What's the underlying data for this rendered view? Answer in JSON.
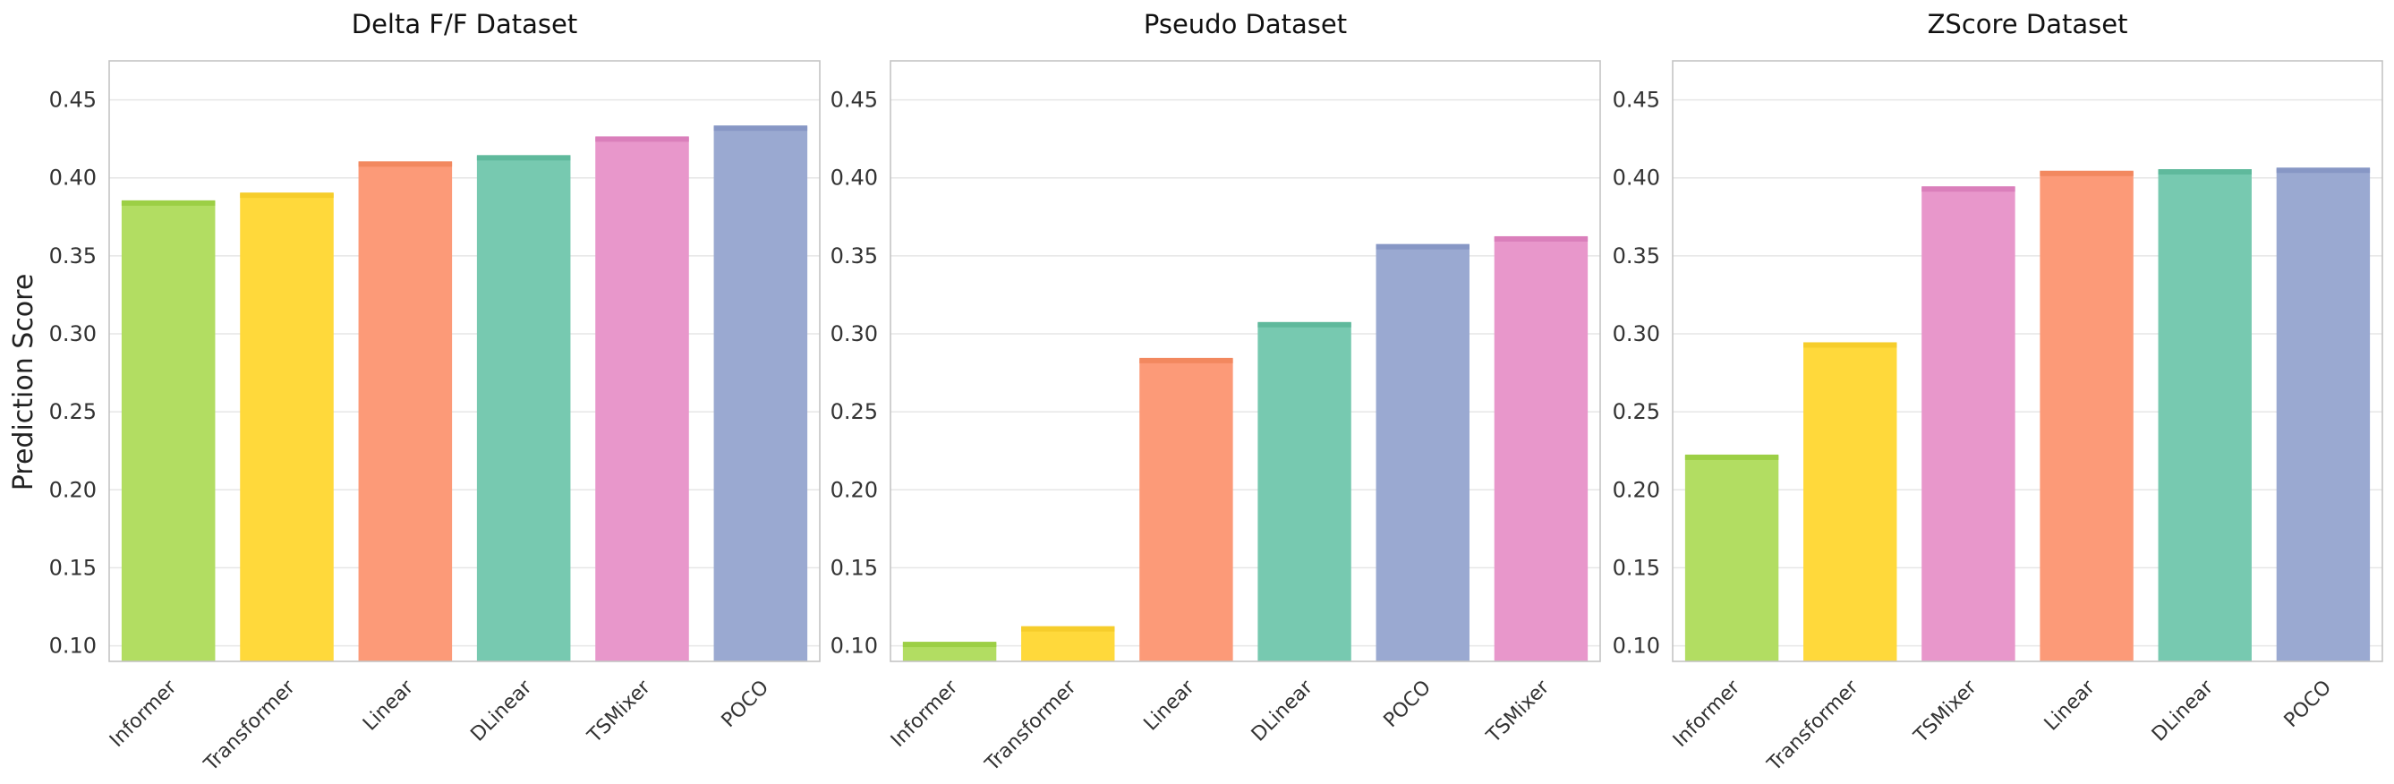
{
  "y_axis_label": "Prediction Score",
  "colors": {
    "Informer": "#b2dd62",
    "Transformer": "#ffd93b",
    "Linear": "#fc9a78",
    "DLinear": "#77c9b0",
    "TSMixer": "#e897cb",
    "POCO": "#9aa9d1"
  },
  "cap_colors": {
    "Informer": "#9ccf45",
    "Transformer": "#f6cd2b",
    "Linear": "#f2885f",
    "DLinear": "#5fb99c",
    "TSMixer": "#da7fbb",
    "POCO": "#8797c5"
  },
  "chart_data": [
    {
      "type": "bar",
      "title": "Delta F/F Dataset",
      "categories": [
        "Informer",
        "Transformer",
        "Linear",
        "DLinear",
        "TSMixer",
        "POCO"
      ],
      "values": [
        0.385,
        0.39,
        0.41,
        0.414,
        0.426,
        0.433
      ],
      "ylim": [
        0.09,
        0.475
      ],
      "yticks": [
        "0.10",
        "0.15",
        "0.20",
        "0.25",
        "0.30",
        "0.35",
        "0.40",
        "0.45"
      ],
      "ylabel": "Prediction Score",
      "grid": true
    },
    {
      "type": "bar",
      "title": "Pseudo Dataset",
      "categories": [
        "Informer",
        "Transformer",
        "Linear",
        "DLinear",
        "POCO",
        "TSMixer"
      ],
      "values": [
        0.102,
        0.112,
        0.284,
        0.307,
        0.357,
        0.362
      ],
      "ylim": [
        0.09,
        0.475
      ],
      "yticks": [
        "0.10",
        "0.15",
        "0.20",
        "0.25",
        "0.30",
        "0.35",
        "0.40",
        "0.45"
      ],
      "ylabel": "",
      "grid": true
    },
    {
      "type": "bar",
      "title": "ZScore Dataset",
      "categories": [
        "Informer",
        "Transformer",
        "TSMixer",
        "Linear",
        "DLinear",
        "POCO"
      ],
      "values": [
        0.222,
        0.294,
        0.394,
        0.404,
        0.405,
        0.406
      ],
      "ylim": [
        0.09,
        0.475
      ],
      "yticks": [
        "0.10",
        "0.15",
        "0.20",
        "0.25",
        "0.30",
        "0.35",
        "0.40",
        "0.45"
      ],
      "ylabel": "",
      "grid": true
    }
  ]
}
